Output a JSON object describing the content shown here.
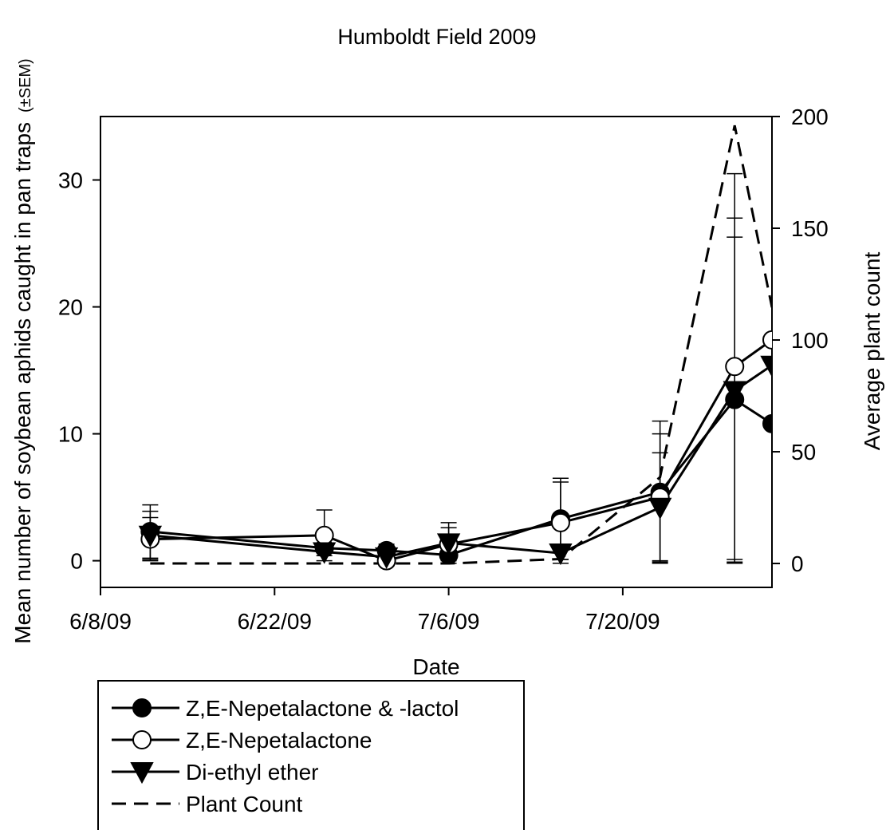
{
  "chart_data": {
    "type": "line",
    "title": "Humboldt Field 2009",
    "xlabel": "Date",
    "ylabel": "Mean number of soybean aphids caught in pan traps",
    "ylabel_note": "(±SEM)",
    "y2label": "Average plant count",
    "x": [
      "2009-06-12",
      "2009-06-26",
      "2009-07-01",
      "2009-07-06",
      "2009-07-15",
      "2009-07-23",
      "2009-07-29",
      "2009-08-01"
    ],
    "xlim": [
      "2009-06-08",
      "2009-08-01"
    ],
    "xticks": [
      {
        "value": "2009-06-08",
        "label": "6/8/09"
      },
      {
        "value": "2009-06-22",
        "label": "6/22/09"
      },
      {
        "value": "2009-07-06",
        "label": "7/6/09"
      },
      {
        "value": "2009-07-20",
        "label": "7/20/09"
      }
    ],
    "ylim": [
      -2.1,
      35
    ],
    "yticks": [
      0,
      10,
      20,
      30
    ],
    "y2lim": [
      -10.7,
      200
    ],
    "y2ticks": [
      0,
      50,
      100,
      150,
      200
    ],
    "series": [
      {
        "name": "Z,E-Nepetalactone & -lactol",
        "color": "#000000",
        "fill": "#000000",
        "marker": "circle",
        "values": [
          2.3,
          1.0,
          0.8,
          0.45,
          3.3,
          5.4,
          12.7,
          10.8
        ],
        "errors": [
          2.1,
          0.3,
          0.5,
          0.3,
          3.2,
          5.6,
          12.8,
          null
        ]
      },
      {
        "name": "Z,E-Nepetalactone",
        "color": "#000000",
        "fill": "#ffffff",
        "marker": "circle",
        "values": [
          1.7,
          2.0,
          0,
          1.3,
          3.0,
          5.0,
          15.3,
          17.4
        ],
        "errors": [
          1.7,
          2.0,
          0.1,
          1.3,
          3.2,
          5.0,
          15.2,
          null
        ]
      },
      {
        "name": "Di-ethyl ether",
        "color": "#000000",
        "fill": "#000000",
        "marker": "triangle-down",
        "values": [
          2.0,
          0.7,
          0.3,
          1.4,
          0.6,
          4.2,
          13.4,
          15.4
        ],
        "errors": [
          1.9,
          0.3,
          0.3,
          1.6,
          0.5,
          4.3,
          13.6,
          null
        ]
      },
      {
        "name": "Plant Count",
        "color": "#000000",
        "dash": "18 10",
        "axis": "y2",
        "values": [
          0,
          0,
          0,
          0,
          2,
          38.6,
          196,
          114.6
        ]
      }
    ]
  }
}
